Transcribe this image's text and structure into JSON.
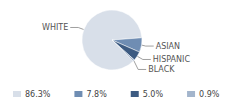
{
  "chart_data": {
    "type": "pie",
    "categories": [
      "WHITE",
      "ASIAN",
      "HISPANIC",
      "BLACK"
    ],
    "values": [
      86.3,
      7.8,
      5.0,
      0.9
    ],
    "value_labels": [
      "86.3%",
      "7.8%",
      "5.0%",
      "0.9%"
    ],
    "colors": [
      "#d8dfe9",
      "#6f8db3",
      "#3d5b82",
      "#a3b5cc"
    ],
    "legend": "bottom"
  }
}
